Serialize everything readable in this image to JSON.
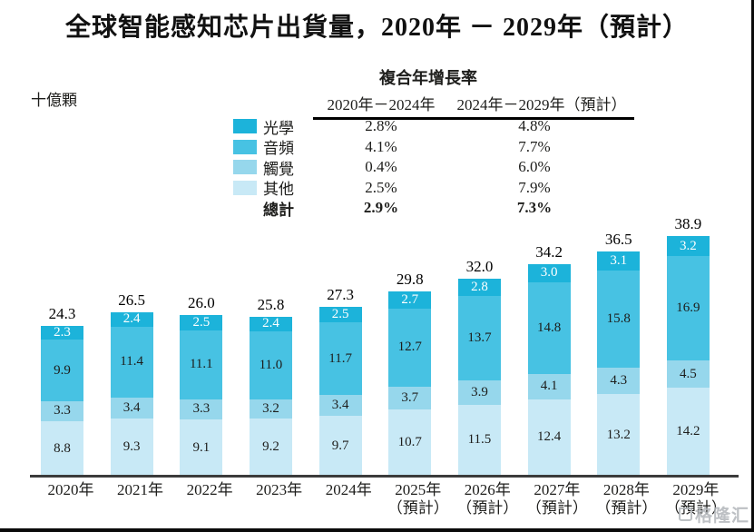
{
  "page": {
    "title": "全球智能感知芯片出貨量，2020年 － 2029年（預計）",
    "unit_label": "十億顆",
    "watermark": "格隆汇"
  },
  "cagr_table": {
    "title": "複合年增長率",
    "col_headers": [
      "2020年－2024年",
      "2024年－2029年（預計）"
    ],
    "rows": [
      {
        "label": "光學",
        "swatch_color": "#1cb3da",
        "cagr_2020_2024": "2.8%",
        "cagr_2024_2029": "4.8%",
        "bold": false
      },
      {
        "label": "音頻",
        "swatch_color": "#47c2e3",
        "cagr_2020_2024": "4.1%",
        "cagr_2024_2029": "7.7%",
        "bold": false
      },
      {
        "label": "觸覺",
        "swatch_color": "#96d7ec",
        "cagr_2020_2024": "0.4%",
        "cagr_2024_2029": "6.0%",
        "bold": false
      },
      {
        "label": "其他",
        "swatch_color": "#c8e9f6",
        "cagr_2020_2024": "2.5%",
        "cagr_2024_2029": "7.9%",
        "bold": false
      },
      {
        "label": "總計",
        "swatch_color": null,
        "cagr_2020_2024": "2.9%",
        "cagr_2024_2029": "7.3%",
        "bold": true
      }
    ]
  },
  "chart_data": {
    "type": "bar",
    "stacked": true,
    "title": "全球智能感知芯片出貨量，2020年 － 2029年（預計）",
    "ylabel": "十億顆",
    "ylim": [
      0,
      40
    ],
    "grid": false,
    "legend_position": "upper-left",
    "series_order": "bottom-to-top",
    "categories": [
      {
        "year": "2020年",
        "note": ""
      },
      {
        "year": "2021年",
        "note": ""
      },
      {
        "year": "2022年",
        "note": ""
      },
      {
        "year": "2023年",
        "note": ""
      },
      {
        "year": "2024年",
        "note": ""
      },
      {
        "year": "2025年",
        "note": "（預計）"
      },
      {
        "year": "2026年",
        "note": "（預計）"
      },
      {
        "year": "2027年",
        "note": "（預計）"
      },
      {
        "year": "2028年",
        "note": "（預計）"
      },
      {
        "year": "2029年",
        "note": "（預計）"
      }
    ],
    "series": [
      {
        "key": "other",
        "name": "其他",
        "color": "#c8e9f6",
        "label_color": "#1d1d1b",
        "values": [
          8.8,
          9.3,
          9.1,
          9.2,
          9.7,
          10.7,
          11.5,
          12.4,
          13.2,
          14.2
        ]
      },
      {
        "key": "touch",
        "name": "觸覺",
        "color": "#96d7ec",
        "label_color": "#1d1d1b",
        "values": [
          3.3,
          3.4,
          3.3,
          3.2,
          3.4,
          3.7,
          3.9,
          4.1,
          4.3,
          4.5
        ]
      },
      {
        "key": "audio",
        "name": "音頻",
        "color": "#47c2e3",
        "label_color": "#1d1d1b",
        "values": [
          9.9,
          11.4,
          11.1,
          11.0,
          11.7,
          12.7,
          13.7,
          14.8,
          15.8,
          16.9
        ]
      },
      {
        "key": "optical",
        "name": "光學",
        "color": "#1cb3da",
        "label_color": "#ffffff",
        "values": [
          2.3,
          2.4,
          2.5,
          2.4,
          2.5,
          2.7,
          2.8,
          3.0,
          3.1,
          3.2
        ]
      }
    ],
    "totals": [
      24.3,
      26.5,
      26.0,
      25.8,
      27.3,
      29.8,
      32.0,
      34.2,
      36.5,
      38.9
    ]
  }
}
